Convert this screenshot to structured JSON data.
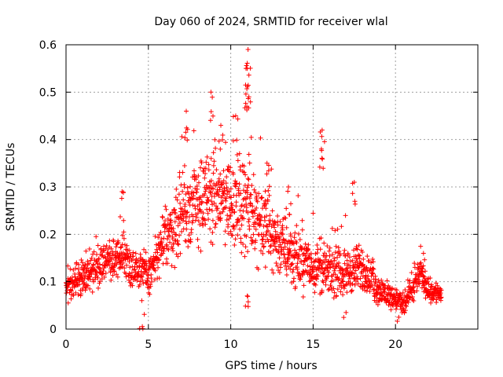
{
  "chart_data": {
    "type": "scatter",
    "title": "Day 060 of 2024, SRMTID for receiver wlal",
    "xlabel": "GPS time / hours",
    "ylabel": "SRMTID / TECUs",
    "xlim": [
      0,
      25
    ],
    "ylim": [
      0,
      0.6
    ],
    "xticks": [
      0,
      5,
      10,
      15,
      20
    ],
    "xtick_labels": [
      "0",
      "5",
      "10",
      "15",
      "20"
    ],
    "yticks": [
      0,
      0.1,
      0.2,
      0.3,
      0.4,
      0.5,
      0.6
    ],
    "ytick_labels": [
      "0",
      "0.1",
      "0.2",
      "0.3",
      "0.4",
      "0.5",
      "0.6"
    ],
    "grid": true,
    "marker": "+",
    "series_color": "#ff0000",
    "envelope_note": "approximate typical level vs GPS hour (data units); points scattered around it",
    "envelope": {
      "x": [
        0,
        0.5,
        1,
        1.5,
        2,
        3,
        3.5,
        4,
        4.5,
        5,
        5.5,
        6,
        7,
        8,
        9,
        10,
        11,
        12,
        13,
        14,
        15,
        16,
        17,
        18,
        19,
        20,
        20.5,
        21,
        21.5,
        22,
        22.7
      ],
      "y": [
        0.085,
        0.1,
        0.11,
        0.12,
        0.14,
        0.14,
        0.16,
        0.13,
        0.13,
        0.11,
        0.15,
        0.19,
        0.24,
        0.27,
        0.28,
        0.27,
        0.26,
        0.22,
        0.18,
        0.15,
        0.13,
        0.12,
        0.12,
        0.13,
        0.08,
        0.065,
        0.05,
        0.08,
        0.12,
        0.08,
        0.075
      ]
    },
    "spread": {
      "x": [
        0,
        2,
        5,
        6,
        7,
        8,
        9,
        10,
        11,
        12,
        13,
        14,
        16,
        18,
        19,
        20,
        21,
        22,
        22.7
      ],
      "y": [
        0.025,
        0.035,
        0.035,
        0.05,
        0.07,
        0.08,
        0.08,
        0.08,
        0.08,
        0.07,
        0.06,
        0.05,
        0.04,
        0.04,
        0.025,
        0.02,
        0.025,
        0.02,
        0.02
      ]
    },
    "peaks": [
      {
        "x": 11.05,
        "y": 0.59
      },
      {
        "x": 11.0,
        "y": 0.55
      },
      {
        "x": 10.9,
        "y": 0.515
      },
      {
        "x": 11.1,
        "y": 0.49
      },
      {
        "x": 8.8,
        "y": 0.5
      },
      {
        "x": 15.55,
        "y": 0.42
      },
      {
        "x": 15.5,
        "y": 0.38
      },
      {
        "x": 17.5,
        "y": 0.31
      },
      {
        "x": 3.4,
        "y": 0.29
      },
      {
        "x": 7.3,
        "y": 0.46
      },
      {
        "x": 10.3,
        "y": 0.45
      },
      {
        "x": 9.4,
        "y": 0.43
      },
      {
        "x": 12.2,
        "y": 0.35
      },
      {
        "x": 13.5,
        "y": 0.3
      },
      {
        "x": 21.7,
        "y": 0.16
      },
      {
        "x": 11.0,
        "y": 0.07
      },
      {
        "x": 4.6,
        "y": 0.06
      },
      {
        "x": 17.0,
        "y": 0.035
      },
      {
        "x": 20.2,
        "y": 0.025
      }
    ],
    "x_end": 22.8,
    "sample_step": 0.012
  }
}
